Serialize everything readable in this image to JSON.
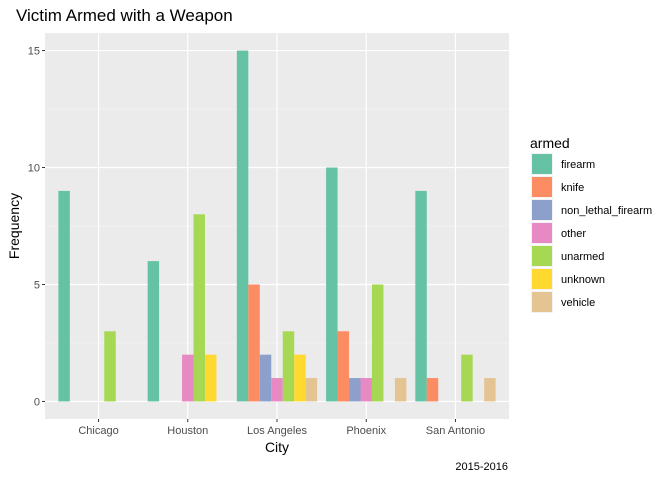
{
  "chart_data": {
    "type": "bar",
    "title": "Victim Armed with a Weapon",
    "xlabel": "City",
    "ylabel": "Frequency",
    "caption": "2015-2016",
    "categories": [
      "Chicago",
      "Houston",
      "Los Angeles",
      "Phoenix",
      "San Antonio"
    ],
    "ylim": [
      -0.75,
      15.75
    ],
    "yticks": [
      0,
      5,
      10,
      15
    ],
    "grid": true,
    "legend_title": "armed",
    "legend_position": "right",
    "series": [
      {
        "name": "firearm",
        "color": "#66C2A5",
        "values": [
          9,
          6,
          15,
          10,
          9
        ]
      },
      {
        "name": "knife",
        "color": "#FC8D62",
        "values": [
          null,
          null,
          5,
          3,
          1
        ]
      },
      {
        "name": "non_lethal_firearm",
        "color": "#8DA0CB",
        "values": [
          null,
          null,
          2,
          1,
          null
        ]
      },
      {
        "name": "other",
        "color": "#E78AC3",
        "values": [
          null,
          2,
          1,
          1,
          null
        ]
      },
      {
        "name": "unarmed",
        "color": "#A6D854",
        "values": [
          3,
          8,
          3,
          5,
          2
        ]
      },
      {
        "name": "unknown",
        "color": "#FFD92F",
        "values": [
          null,
          2,
          2,
          null,
          null
        ]
      },
      {
        "name": "vehicle",
        "color": "#E5C494",
        "values": [
          null,
          null,
          1,
          1,
          1
        ]
      }
    ]
  }
}
